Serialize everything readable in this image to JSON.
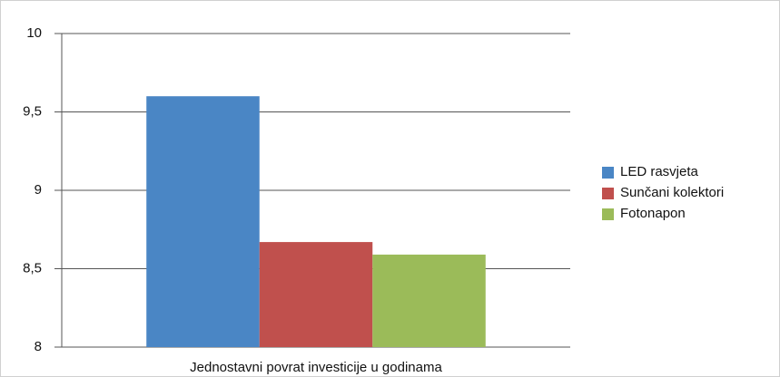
{
  "chart_data": {
    "type": "bar",
    "categories": [
      "Jednostavni povrat investicije u godinama"
    ],
    "series": [
      {
        "name": "LED rasvjeta",
        "color": "#4a86c5",
        "values": [
          9.6
        ]
      },
      {
        "name": "Sunčani kolektori",
        "color": "#c0504d",
        "values": [
          8.67
        ]
      },
      {
        "name": "Fotonapon",
        "color": "#9bbb59",
        "values": [
          8.59
        ]
      }
    ],
    "ylim": [
      8,
      10
    ],
    "yticks": [
      8,
      {
        "value": 8.5,
        "label": "8,5"
      },
      9,
      {
        "value": 9.5,
        "label": "9,5"
      },
      10
    ],
    "grid": true,
    "legend": "right"
  }
}
